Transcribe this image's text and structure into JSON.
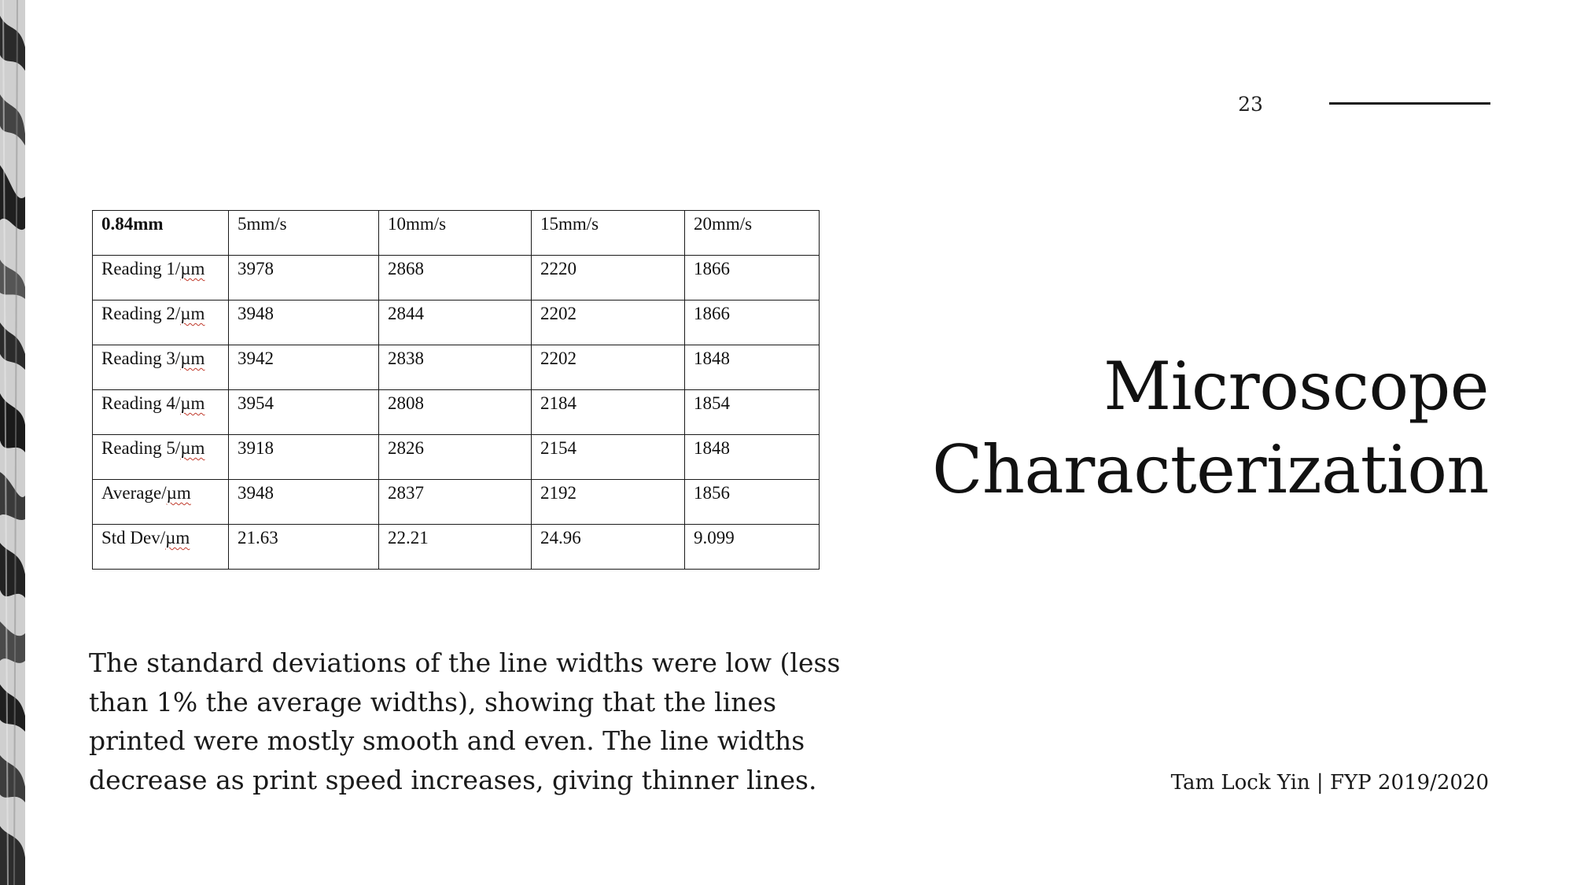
{
  "page_number": "23",
  "title_lines": [
    "Microscope",
    "Characterization"
  ],
  "table": {
    "header": [
      "0.84mm",
      "5mm/s",
      "10mm/s",
      "15mm/s",
      "20mm/s"
    ],
    "rows": [
      {
        "label_text": "Reading 1/",
        "label_unit": "µm",
        "values": [
          "3978",
          "2868",
          "2220",
          "1866"
        ]
      },
      {
        "label_text": "Reading 2/",
        "label_unit": "µm",
        "values": [
          "3948",
          "2844",
          "2202",
          "1866"
        ]
      },
      {
        "label_text": "Reading 3/",
        "label_unit": "µm",
        "values": [
          "3942",
          "2838",
          "2202",
          "1848"
        ]
      },
      {
        "label_text": "Reading 4/",
        "label_unit": "µm",
        "values": [
          "3954",
          "2808",
          "2184",
          "1854"
        ]
      },
      {
        "label_text": "Reading 5/",
        "label_unit": "µm",
        "values": [
          "3918",
          "2826",
          "2154",
          "1848"
        ]
      },
      {
        "label_text": "Average/",
        "label_unit": "µm",
        "values": [
          "3948",
          "2837",
          "2192",
          "1856"
        ]
      },
      {
        "label_text": "Std Dev/",
        "label_unit": "µm",
        "values": [
          "21.63",
          "22.21",
          "24.96",
          "9.099"
        ]
      }
    ]
  },
  "body_lines": [
    "The standard deviations of the line widths were low (less",
    "than 1% the average widths), showing that the lines",
    "printed were mostly smooth and even. The line widths",
    "decrease as print speed increases, giving thinner lines."
  ],
  "footer": "Tam Lock Yin | FYP 2019/2020"
}
